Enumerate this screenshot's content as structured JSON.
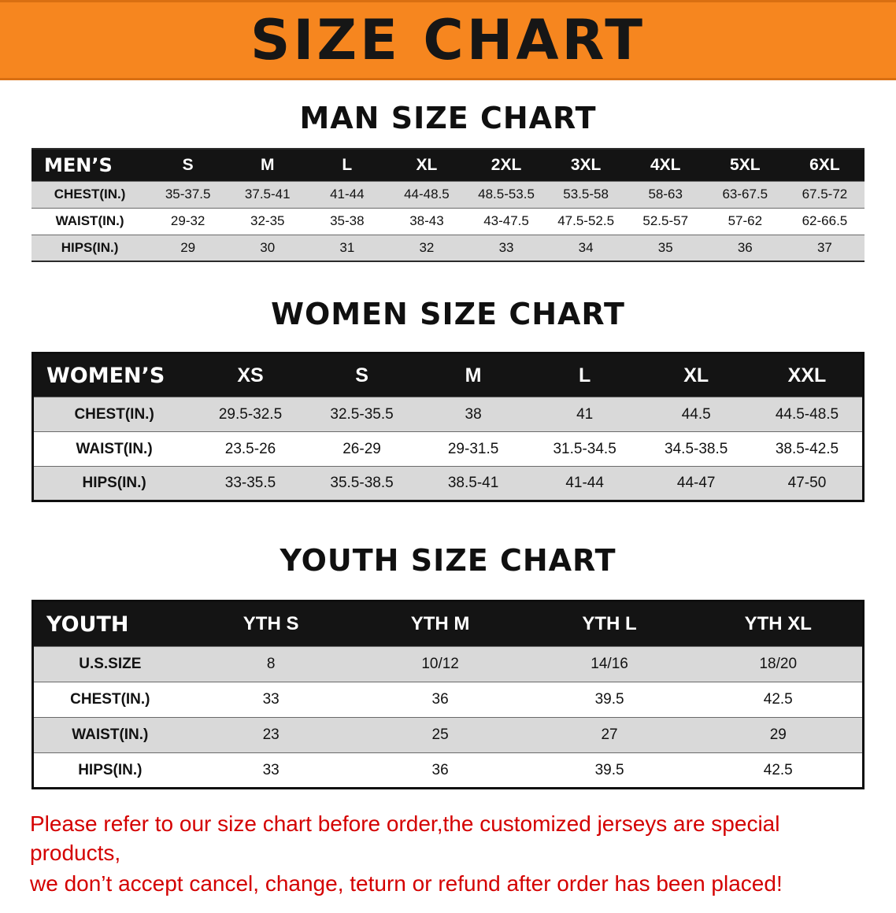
{
  "banner": {
    "title": "SIZE CHART",
    "bg_color": "#f6861f"
  },
  "sections": [
    {
      "id": "men",
      "heading": "MAN SIZE CHART",
      "table": {
        "header": [
          "MEN’S",
          "S",
          "M",
          "L",
          "XL",
          "2XL",
          "3XL",
          "4XL",
          "5XL",
          "6XL"
        ],
        "rows": [
          [
            "CHEST(IN.)",
            "35-37.5",
            "37.5-41",
            "41-44",
            "44-48.5",
            "48.5-53.5",
            "53.5-58",
            "58-63",
            "63-67.5",
            "67.5-72"
          ],
          [
            "WAIST(IN.)",
            "29-32",
            "32-35",
            "35-38",
            "38-43",
            "43-47.5",
            "47.5-52.5",
            "52.5-57",
            "57-62",
            "62-66.5"
          ],
          [
            "HIPS(IN.)",
            "29",
            "30",
            "31",
            "32",
            "33",
            "34",
            "35",
            "36",
            "37"
          ]
        ]
      }
    },
    {
      "id": "women",
      "heading": "WOMEN SIZE CHART",
      "table": {
        "header": [
          "WOMEN’S",
          "XS",
          "S",
          "M",
          "L",
          "XL",
          "XXL"
        ],
        "rows": [
          [
            "CHEST(IN.)",
            "29.5-32.5",
            "32.5-35.5",
            "38",
            "41",
            "44.5",
            "44.5-48.5"
          ],
          [
            "WAIST(IN.)",
            "23.5-26",
            "26-29",
            "29-31.5",
            "31.5-34.5",
            "34.5-38.5",
            "38.5-42.5"
          ],
          [
            "HIPS(IN.)",
            "33-35.5",
            "35.5-38.5",
            "38.5-41",
            "41-44",
            "44-47",
            "47-50"
          ]
        ]
      }
    },
    {
      "id": "youth",
      "heading": "YOUTH SIZE CHART",
      "table": {
        "header": [
          "YOUTH",
          "YTH S",
          "YTH M",
          "YTH L",
          "YTH XL"
        ],
        "rows": [
          [
            "U.S.SIZE",
            "8",
            "10/12",
            "14/16",
            "18/20"
          ],
          [
            "CHEST(IN.)",
            "33",
            "36",
            "39.5",
            "42.5"
          ],
          [
            "WAIST(IN.)",
            "23",
            "25",
            "27",
            "29"
          ],
          [
            "HIPS(IN.)",
            "33",
            "36",
            "39.5",
            "42.5"
          ]
        ]
      }
    }
  ],
  "footer": {
    "line1": "Please refer to our size chart before order,the customized jerseys are special products,",
    "line2": "we don’t accept cancel, change, teturn or refund after order has been placed!",
    "text_color": "#d40000"
  },
  "colors": {
    "banner_orange": "#f6861f",
    "table_header_bg": "#141414",
    "row_alt_gray": "#d9d9d9",
    "disclaimer_red": "#d40000"
  }
}
